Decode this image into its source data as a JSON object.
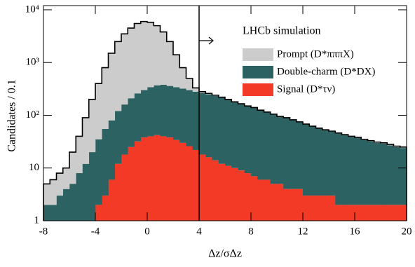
{
  "chart_data": {
    "type": "histogram",
    "stacked": true,
    "log_y": true,
    "annotation": "LHCb simulation",
    "ylabel": "Candidates / 0.1",
    "xlabel": "Δz/σΔz",
    "vline": 4,
    "xlim": [
      -8,
      20
    ],
    "xticks": [
      -8,
      -4,
      0,
      4,
      8,
      12,
      16,
      20
    ],
    "ylim": [
      1,
      12000
    ],
    "yticks": [
      1,
      10,
      {
        "value": 100,
        "label": "10²"
      },
      {
        "value": 1000,
        "label": "10³"
      },
      {
        "value": 10000,
        "label": "10⁴"
      }
    ],
    "bins": [
      -8,
      -7.5,
      -7,
      -6.5,
      -6,
      -5.5,
      -5,
      -4.5,
      -4,
      -3.5,
      -3,
      -2.5,
      -2,
      -1.5,
      -1,
      -0.5,
      0,
      0.5,
      1,
      1.5,
      2,
      2.5,
      3,
      3.5,
      4,
      4.5,
      5,
      5.5,
      6,
      6.5,
      7,
      7.5,
      8,
      8.5,
      9,
      9.5,
      10,
      10.5,
      11,
      11.5,
      12,
      12.5,
      13,
      13.5,
      14,
      14.5,
      15,
      15.5,
      16,
      16.5,
      17,
      17.5,
      18,
      18.5,
      19,
      19.5,
      20
    ],
    "series": [
      {
        "name": "Prompt (D*πππX)",
        "color": "#cccccc",
        "values": [
          3,
          4,
          5,
          6,
          15,
          32,
          78,
          180,
          365,
          745,
          1420,
          2380,
          3340,
          4290,
          5240,
          5700,
          5460,
          4630,
          3420,
          2140,
          1060,
          480,
          200,
          50,
          15,
          10,
          7,
          5,
          4,
          3,
          2,
          2,
          2,
          1,
          1,
          1,
          1,
          1,
          1,
          1,
          1,
          1,
          1,
          1,
          1,
          1,
          1,
          1,
          1,
          1,
          1,
          1,
          1,
          1,
          1,
          1
        ]
      },
      {
        "name": "Double-charm (D*DX)",
        "color": "#2d6262",
        "values": [
          2,
          2,
          3,
          4,
          5,
          8,
          11,
          19,
          33,
          52,
          74,
          108,
          142,
          185,
          228,
          262,
          300,
          328,
          340,
          322,
          306,
          290,
          274,
          258,
          247,
          234,
          219,
          203,
          185,
          167,
          154,
          140,
          131,
          118,
          108,
          99,
          89,
          85,
          77,
          70,
          64,
          58,
          53,
          49,
          46,
          43,
          40,
          37,
          35,
          32,
          30,
          28,
          27,
          25,
          23,
          22
        ]
      },
      {
        "name": "Signal (D*τν)",
        "color": "#f23a26",
        "values": [
          0,
          0,
          0,
          0,
          0,
          0,
          1,
          1,
          2,
          3,
          6,
          12,
          18,
          25,
          32,
          38,
          40,
          42,
          40,
          38,
          34,
          30,
          26,
          22,
          18,
          16,
          14,
          12,
          11,
          10,
          9,
          8,
          7,
          6,
          6,
          5,
          5,
          4,
          4,
          4,
          3,
          3,
          3,
          3,
          3,
          2,
          2,
          2,
          2,
          2,
          2,
          2,
          2,
          2,
          2,
          2
        ]
      }
    ]
  }
}
